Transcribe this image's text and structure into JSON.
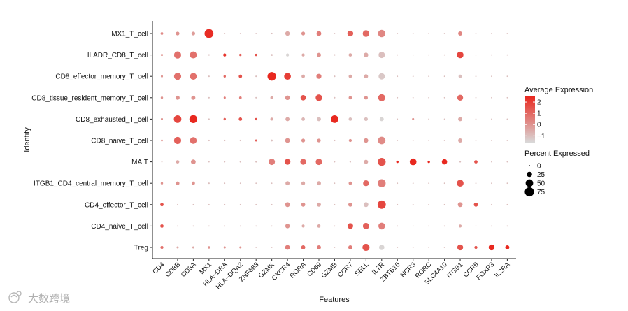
{
  "chart_data": {
    "type": "dotplot",
    "xlabel": "Features",
    "ylabel": "Identity",
    "features": [
      "CD4",
      "CD8B",
      "CD8A",
      "MX1",
      "HLA−DRA",
      "HLA−DQA2",
      "ZNF683",
      "GZMK",
      "CXCR4",
      "RORA",
      "CD69",
      "GZMB",
      "CCR7",
      "SELL",
      "IL7R",
      "ZBTB16",
      "NCR3",
      "RORC",
      "SLC4A10",
      "ITGB1",
      "CCR6",
      "FOXP3",
      "IL2RA"
    ],
    "identities": [
      "MX1_T_cell",
      "HLADR_CD8_T_cell",
      "CD8_effector_memory_T_cell",
      "CD8_tissue_resident_memory_T_cell",
      "CD8_exhausted_T_cell",
      "CD8_naive_T_cell",
      "MAIT",
      "ITGB1_CD4_central_memory_T_cell",
      "CD4_effector_T_cell",
      "CD4_naive_T_cell",
      "Treg"
    ],
    "color_legend": {
      "title": "Average Expression",
      "ticks": [
        2,
        1,
        0,
        -1
      ],
      "range": [
        -1.6,
        2.5
      ],
      "low_color": "#d9d9d9",
      "high_color": "#e8281f"
    },
    "size_legend": {
      "title": "Percent Expressed",
      "ticks": [
        0,
        25,
        50,
        75
      ],
      "max": 80
    },
    "pct": [
      [
        6,
        12,
        12,
        70,
        1,
        1,
        1,
        2,
        18,
        12,
        20,
        1,
        30,
        38,
        48,
        1,
        1,
        1,
        1,
        15,
        1,
        1,
        1
      ],
      [
        4,
        45,
        42,
        2,
        8,
        5,
        5,
        3,
        8,
        8,
        15,
        2,
        10,
        18,
        35,
        1,
        1,
        1,
        1,
        38,
        1,
        1,
        1
      ],
      [
        4,
        45,
        40,
        2,
        5,
        10,
        2,
        65,
        40,
        10,
        22,
        2,
        10,
        15,
        35,
        1,
        1,
        1,
        1,
        10,
        1,
        1,
        1
      ],
      [
        5,
        15,
        15,
        2,
        4,
        6,
        2,
        8,
        18,
        25,
        38,
        2,
        10,
        12,
        45,
        1,
        1,
        1,
        1,
        30,
        1,
        1,
        1
      ],
      [
        4,
        50,
        55,
        2,
        5,
        10,
        5,
        8,
        15,
        10,
        15,
        50,
        10,
        12,
        15,
        1,
        4,
        1,
        1,
        15,
        1,
        1,
        1
      ],
      [
        3,
        45,
        40,
        2,
        2,
        2,
        4,
        3,
        20,
        12,
        12,
        2,
        8,
        18,
        50,
        1,
        1,
        1,
        1,
        15,
        1,
        1,
        1
      ],
      [
        1,
        10,
        20,
        1,
        1,
        2,
        2,
        35,
        30,
        30,
        35,
        1,
        2,
        15,
        55,
        5,
        40,
        5,
        25,
        2,
        10,
        1,
        1
      ],
      [
        5,
        12,
        10,
        2,
        1,
        1,
        1,
        1,
        15,
        12,
        15,
        1,
        10,
        30,
        55,
        1,
        1,
        1,
        1,
        40,
        1,
        1,
        1
      ],
      [
        10,
        1,
        1,
        1,
        1,
        1,
        1,
        1,
        20,
        15,
        15,
        1,
        15,
        20,
        60,
        1,
        1,
        1,
        1,
        20,
        15,
        1,
        1
      ],
      [
        10,
        1,
        1,
        1,
        1,
        1,
        1,
        1,
        18,
        8,
        10,
        1,
        28,
        35,
        40,
        1,
        1,
        1,
        1,
        8,
        1,
        1,
        1
      ],
      [
        8,
        4,
        4,
        5,
        4,
        4,
        1,
        1,
        20,
        15,
        15,
        1,
        15,
        45,
        25,
        1,
        1,
        1,
        1,
        30,
        8,
        30,
        15
      ]
    ],
    "avg": [
      [
        0.2,
        0,
        -0.2,
        2.4,
        -1,
        -1,
        -1,
        -1,
        -0.5,
        0,
        0.5,
        -1,
        1.2,
        1.0,
        0.3,
        -1,
        -1,
        -1,
        -1,
        0.3,
        -1,
        -1,
        -1
      ],
      [
        0,
        0.8,
        0.8,
        -1,
        2.2,
        1.2,
        1.5,
        -1,
        -1.5,
        -0.5,
        0,
        -1,
        -0.5,
        -0.5,
        -1,
        -1,
        -1,
        -1,
        -1,
        1.8,
        -1,
        -1,
        -1
      ],
      [
        0,
        0.8,
        0.8,
        -1,
        1.0,
        1.5,
        -1,
        2.5,
        2.0,
        -0.5,
        0.5,
        -1,
        -0.5,
        -0.5,
        -1.2,
        -1,
        -1,
        -1,
        -1,
        -1,
        -1,
        -1,
        -1
      ],
      [
        0,
        0,
        0,
        -1,
        0.5,
        0.5,
        -1,
        -0.5,
        0,
        1.5,
        1.5,
        -1,
        0,
        0,
        1.0,
        -1,
        -1,
        -1,
        -1,
        1.0,
        -1,
        -1,
        -1
      ],
      [
        0,
        1.8,
        2.5,
        -1,
        1.2,
        1.5,
        1.5,
        -0.5,
        -0.5,
        -0.8,
        -1,
        2.5,
        -1,
        -1,
        -1.5,
        -1,
        0,
        -1,
        -1,
        -0.5,
        -1,
        -1,
        -1
      ],
      [
        0,
        1.2,
        0.8,
        -1,
        -1,
        -1,
        1.2,
        -1,
        0,
        0,
        0,
        -1,
        0,
        0,
        0.2,
        -1,
        -1,
        -1,
        -1,
        -0.5,
        -1,
        -1,
        -1
      ],
      [
        -1,
        -0.5,
        0,
        -1,
        -1,
        -1,
        -1,
        0.5,
        1.5,
        1.0,
        1.0,
        -1,
        -1,
        -0.5,
        1.5,
        2.5,
        2.5,
        2.5,
        2.5,
        -1,
        1.5,
        -1,
        -1
      ],
      [
        0,
        0,
        0,
        -1,
        -1,
        -1,
        -1,
        -1,
        -0.5,
        -0.5,
        -0.5,
        -1,
        0,
        1.0,
        0.5,
        -1,
        -1,
        -1,
        -1,
        1.5,
        -1,
        -1,
        -1
      ],
      [
        1.5,
        -1,
        -1,
        -1,
        -1,
        -1,
        -1,
        -1,
        0,
        0,
        -0.5,
        -1,
        0,
        -1,
        1.8,
        -1,
        -1,
        -1,
        -1,
        0,
        1.5,
        -1,
        -1
      ],
      [
        1.5,
        -1,
        -1,
        -1,
        -1,
        -1,
        -1,
        -1,
        0,
        -0.5,
        -0.5,
        -1,
        1.5,
        1.2,
        0.5,
        -1,
        -1,
        -1,
        -1,
        -0.5,
        -1,
        -1,
        -1
      ],
      [
        0.8,
        -0.5,
        -0.5,
        0,
        0,
        0,
        -1,
        -1,
        0.5,
        1.0,
        0.5,
        -1,
        0.5,
        1.5,
        -1.5,
        -1,
        -1,
        -1,
        -1,
        1.5,
        1.5,
        2.5,
        2.5
      ]
    ]
  },
  "watermark": {
    "text": "大数跨境",
    "icon": "watermark-logo-icon"
  }
}
